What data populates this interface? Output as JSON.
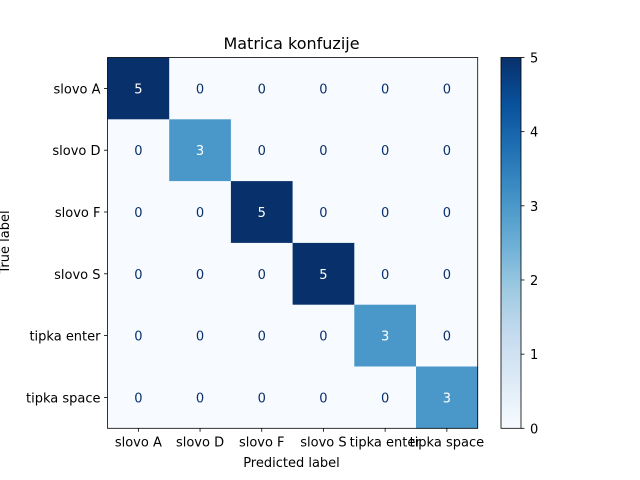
{
  "chart_data": {
    "type": "heatmap",
    "title": "Matrica konfuzije",
    "xlabel": "Predicted label",
    "ylabel": "True label",
    "labels": [
      "slovo A",
      "slovo D",
      "slovo F",
      "slovo S",
      "tipka enter",
      "tipka space"
    ],
    "matrix": [
      [
        5,
        0,
        0,
        0,
        0,
        0
      ],
      [
        0,
        3,
        0,
        0,
        0,
        0
      ],
      [
        0,
        0,
        5,
        0,
        0,
        0
      ],
      [
        0,
        0,
        0,
        5,
        0,
        0
      ],
      [
        0,
        0,
        0,
        0,
        3,
        0
      ],
      [
        0,
        0,
        0,
        0,
        0,
        3
      ]
    ],
    "colormap": "Blues",
    "vmin": 0,
    "vmax": 5,
    "colorbar_ticks": [
      0,
      1,
      2,
      3,
      4,
      5
    ],
    "grid": false
  }
}
